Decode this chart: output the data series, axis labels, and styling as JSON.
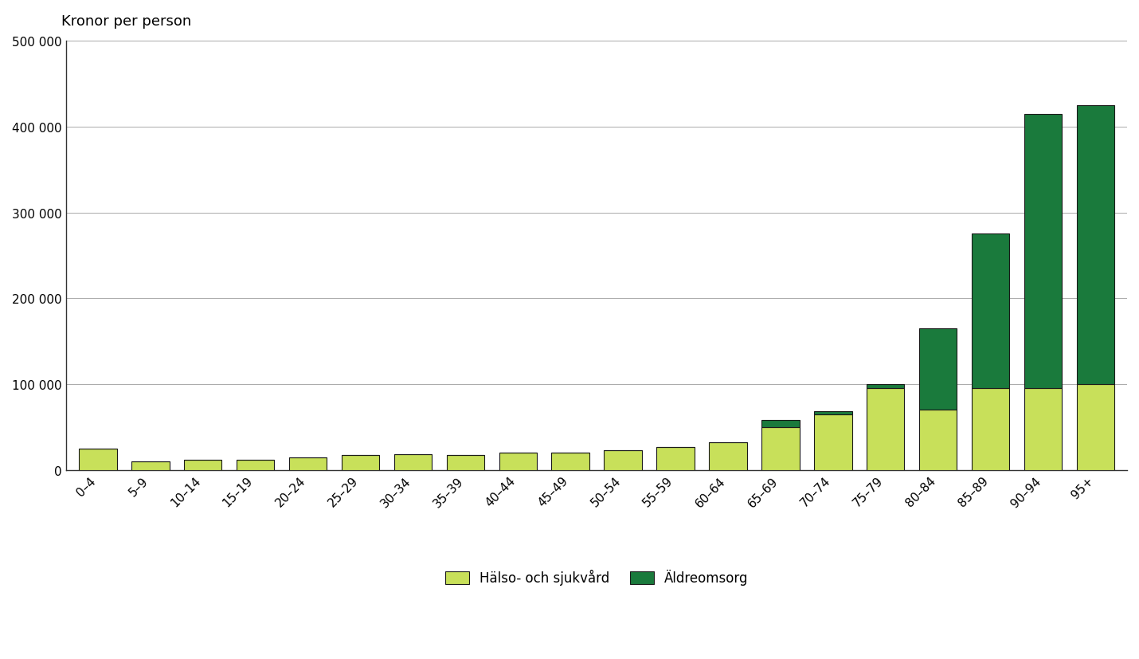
{
  "categories": [
    "0–4",
    "5–9",
    "10–14",
    "15–19",
    "20–24",
    "25–29",
    "30–34",
    "35–39",
    "40–44",
    "45–49",
    "50–54",
    "55–59",
    "60–64",
    "65–69",
    "70–74",
    "75–79",
    "80–84",
    "85–89",
    "90–94",
    "95+"
  ],
  "halso": [
    25000,
    10000,
    12000,
    12000,
    15000,
    17000,
    18000,
    17000,
    20000,
    20000,
    23000,
    27000,
    32000,
    50000,
    65000,
    95000,
    70000,
    95000,
    95000,
    100000
  ],
  "aldreom": [
    0,
    0,
    0,
    0,
    0,
    0,
    0,
    0,
    0,
    0,
    0,
    0,
    0,
    8000,
    3000,
    5000,
    95000,
    180000,
    320000,
    325000
  ],
  "halso_color": "#c8e05a",
  "aldreom_color": "#1a7a3c",
  "bar_edge_color": "#1a1a1a",
  "background_color": "#ffffff",
  "grid_color": "#aaaaaa",
  "ylabel": "Kronor per person",
  "ylim": [
    0,
    500000
  ],
  "yticks": [
    0,
    100000,
    200000,
    300000,
    400000,
    500000
  ],
  "ytick_labels": [
    "0",
    "100 000",
    "200 000",
    "300 000",
    "400 000",
    "500 000"
  ],
  "legend_halso": "Hälso- och sjukvård",
  "legend_aldreom": "Äldreomsorg",
  "title_fontsize": 13,
  "axis_fontsize": 12,
  "tick_fontsize": 11,
  "legend_fontsize": 12
}
